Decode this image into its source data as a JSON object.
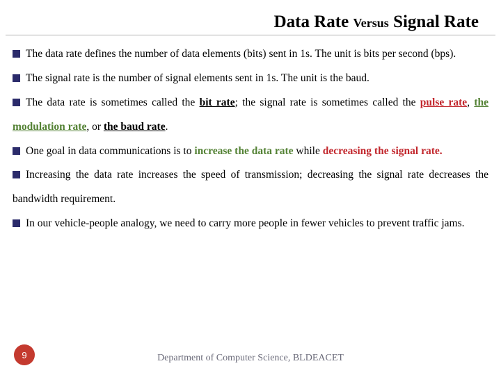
{
  "title": {
    "p1": "Data Rate ",
    "p2": "Versus",
    "p3": " Signal Rate"
  },
  "b1": {
    "t1": "The data rate defines the number of data elements (bits) sent in 1s. The unit is bits per second (bps)."
  },
  "b2": {
    "t1": "The signal rate is the number of signal elements sent in 1s. The unit is the baud."
  },
  "b3": {
    "t1": "The data rate is sometimes called the ",
    "t2": "bit rate",
    "t3": "; the signal rate is sometimes called the ",
    "t4": "pulse rate",
    "t5": ", ",
    "t6": "the modulation rate",
    "t7": ", or ",
    "t8": "the baud rate",
    "t9": "."
  },
  "b4": {
    "t1": "One goal in data communications is to ",
    "t2": "increase the data rate",
    "t3": " while ",
    "t4": "decreasing the signal rate."
  },
  "b5": {
    "t1": "Increasing the data rate increases the speed of transmission; decreasing the signal rate decreases the bandwidth requirement."
  },
  "b6": {
    "t1": "In our vehicle-people analogy, we need to carry more people in fewer vehicles to prevent traffic jams."
  },
  "pageNumber": "9",
  "footer": "Department of Computer Science, BLDEACET",
  "colors": {
    "bullet": "#2b2b6b",
    "red": "#c2272d",
    "green": "#548235",
    "pageBadge": "#c43a2f",
    "rule": "#b0b0b0",
    "footer": "#6b6b7a"
  }
}
